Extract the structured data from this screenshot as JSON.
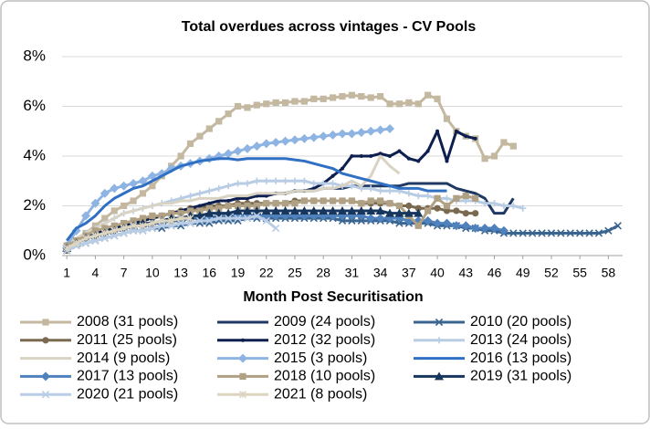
{
  "chart_data": {
    "type": "line",
    "title": "Total overdues across vintages - CV Pools",
    "x_label": "Month Post Securitisation",
    "x": [
      1,
      2,
      3,
      4,
      5,
      6,
      7,
      8,
      9,
      10,
      11,
      12,
      13,
      14,
      15,
      16,
      17,
      18,
      19,
      20,
      21,
      22,
      23,
      24,
      25,
      26,
      27,
      28,
      29,
      30,
      31,
      32,
      33,
      34,
      35,
      36,
      37,
      38,
      39,
      40,
      41,
      42,
      43,
      44,
      45,
      46,
      47,
      48,
      49,
      50,
      51,
      52,
      53,
      54,
      55,
      56,
      57,
      58,
      59
    ],
    "xlim": [
      0.5,
      59.5
    ],
    "xticks": [
      1,
      4,
      7,
      10,
      13,
      16,
      19,
      22,
      25,
      28,
      31,
      34,
      37,
      40,
      43,
      46,
      49,
      52,
      55,
      58
    ],
    "ylim": [
      0,
      8
    ],
    "yticks": [
      {
        "value": 0,
        "label": "0%"
      },
      {
        "value": 2,
        "label": "2%"
      },
      {
        "value": 4,
        "label": "4%"
      },
      {
        "value": 6,
        "label": "6%"
      },
      {
        "value": 8,
        "label": "8%"
      }
    ],
    "grid": true,
    "legend": "bottom",
    "series": [
      {
        "name": "2008 (31 pools)",
        "color": "#c4b9a0",
        "marker": "square",
        "values": [
          0.3,
          0.6,
          0.9,
          1.2,
          1.5,
          1.8,
          2.0,
          2.2,
          2.5,
          2.8,
          3.2,
          3.6,
          4.0,
          4.5,
          4.8,
          5.1,
          5.4,
          5.7,
          6.0,
          5.95,
          6.05,
          6.1,
          6.15,
          6.15,
          6.2,
          6.2,
          6.3,
          6.3,
          6.35,
          6.4,
          6.45,
          6.4,
          6.35,
          6.4,
          6.1,
          6.1,
          6.15,
          6.1,
          6.45,
          6.3,
          5.5,
          5.0,
          4.8,
          4.7,
          3.9,
          4.0,
          4.55,
          4.4,
          null,
          null,
          null,
          null,
          null,
          null,
          null,
          null,
          null,
          null,
          null
        ]
      },
      {
        "name": "2009 (24 pools)",
        "color": "#1f3864",
        "marker": "none",
        "values": [
          0.3,
          0.5,
          0.7,
          0.9,
          1.0,
          1.1,
          1.2,
          1.3,
          1.4,
          1.5,
          1.6,
          1.7,
          1.8,
          1.9,
          2.0,
          2.1,
          2.2,
          2.2,
          2.3,
          2.3,
          2.4,
          2.4,
          2.5,
          2.5,
          2.6,
          2.6,
          2.6,
          2.7,
          2.7,
          2.7,
          2.8,
          2.8,
          2.8,
          2.8,
          2.8,
          2.8,
          2.9,
          2.9,
          2.9,
          2.9,
          2.9,
          2.7,
          2.6,
          2.5,
          2.3,
          1.7,
          1.7,
          2.3,
          null,
          null,
          null,
          null,
          null,
          null,
          null,
          null,
          null,
          null,
          null
        ]
      },
      {
        "name": "2010 (20 pools)",
        "color": "#3a6590",
        "marker": "x",
        "values": [
          0.2,
          0.4,
          0.5,
          0.6,
          0.7,
          0.8,
          0.9,
          1.0,
          1.0,
          1.1,
          1.1,
          1.2,
          1.2,
          1.3,
          1.3,
          1.3,
          1.4,
          1.4,
          1.4,
          1.5,
          1.5,
          1.5,
          1.5,
          1.5,
          1.5,
          1.5,
          1.5,
          1.5,
          1.5,
          1.4,
          1.4,
          1.4,
          1.4,
          1.4,
          1.4,
          1.3,
          1.3,
          1.3,
          1.3,
          1.2,
          1.2,
          1.2,
          1.1,
          1.1,
          1.0,
          1.0,
          0.9,
          0.9,
          0.9,
          0.9,
          0.9,
          0.9,
          0.9,
          0.9,
          0.9,
          0.9,
          0.9,
          1.0,
          1.2
        ]
      },
      {
        "name": "2011 (25 pools)",
        "color": "#7a6a50",
        "marker": "circle",
        "values": [
          0.2,
          0.5,
          0.7,
          0.9,
          1.0,
          1.1,
          1.2,
          1.3,
          1.4,
          1.5,
          1.6,
          1.7,
          1.8,
          1.9,
          1.9,
          2.0,
          2.0,
          2.0,
          2.1,
          2.1,
          2.1,
          2.1,
          2.1,
          2.1,
          2.2,
          2.2,
          2.2,
          2.2,
          2.2,
          2.2,
          2.2,
          2.1,
          2.1,
          2.1,
          2.1,
          2.0,
          2.0,
          1.9,
          1.9,
          1.9,
          1.8,
          1.8,
          1.7,
          1.7,
          null,
          null,
          null,
          null,
          null,
          null,
          null,
          null,
          null,
          null,
          null,
          null,
          null,
          null,
          null
        ]
      },
      {
        "name": "2012 (32 pools)",
        "color": "#0d1f4f",
        "marker": "dot",
        "values": [
          0.3,
          0.5,
          0.7,
          0.9,
          1.0,
          1.1,
          1.2,
          1.3,
          1.4,
          1.5,
          1.6,
          1.7,
          1.8,
          1.9,
          2.0,
          2.1,
          2.2,
          2.2,
          2.3,
          2.3,
          2.4,
          2.4,
          2.5,
          2.5,
          2.6,
          2.6,
          2.7,
          2.9,
          3.2,
          3.5,
          4.0,
          4.0,
          4.0,
          4.1,
          4.0,
          4.2,
          3.9,
          3.8,
          4.2,
          5.0,
          3.8,
          5.0,
          4.8,
          4.7,
          null,
          null,
          null,
          null,
          null,
          null,
          null,
          null,
          null,
          null,
          null,
          null,
          null,
          null,
          null
        ]
      },
      {
        "name": "2013 (24 pools)",
        "color": "#b8cce4",
        "marker": "plus",
        "values": [
          0.3,
          0.6,
          0.9,
          1.1,
          1.3,
          1.5,
          1.7,
          1.8,
          1.9,
          2.0,
          2.1,
          2.2,
          2.3,
          2.4,
          2.5,
          2.6,
          2.7,
          2.8,
          2.9,
          2.9,
          3.0,
          3.0,
          3.0,
          3.0,
          3.0,
          3.0,
          2.9,
          2.9,
          2.9,
          2.8,
          2.8,
          2.7,
          2.7,
          2.6,
          2.6,
          2.6,
          2.5,
          2.4,
          2.4,
          2.3,
          2.3,
          2.2,
          2.2,
          2.2,
          2.1,
          2.1,
          2.0,
          2.0,
          1.9,
          null,
          null,
          null,
          null,
          null,
          null,
          null,
          null,
          null,
          null
        ]
      },
      {
        "name": "2014 (9 pools)",
        "color": "#d9d3c3",
        "marker": "none",
        "values": [
          0.4,
          0.7,
          0.9,
          1.1,
          1.3,
          1.5,
          1.7,
          1.8,
          1.9,
          2.0,
          2.1,
          2.1,
          2.2,
          2.2,
          2.3,
          2.3,
          2.3,
          2.4,
          2.4,
          2.4,
          2.5,
          2.5,
          2.5,
          2.5,
          2.6,
          2.6,
          2.6,
          2.7,
          2.7,
          2.8,
          3.0,
          2.8,
          3.2,
          4.0,
          3.6,
          3.3,
          null,
          null,
          null,
          null,
          null,
          null,
          null,
          null,
          null,
          null,
          null,
          null,
          null,
          null,
          null,
          null,
          null,
          null,
          null,
          null,
          null,
          null,
          null
        ]
      },
      {
        "name": "2015 (3 pools)",
        "color": "#8eb4e3",
        "marker": "diamond",
        "values": [
          0.4,
          1.0,
          1.6,
          2.1,
          2.5,
          2.7,
          2.8,
          2.9,
          3.0,
          3.2,
          3.3,
          3.5,
          3.6,
          3.7,
          3.8,
          3.9,
          4.0,
          4.1,
          4.2,
          4.3,
          4.4,
          4.5,
          4.55,
          4.6,
          4.65,
          4.7,
          4.75,
          4.8,
          4.85,
          4.9,
          4.9,
          4.95,
          5.0,
          5.05,
          5.1,
          null,
          null,
          null,
          null,
          null,
          null,
          null,
          null,
          null,
          null,
          null,
          null,
          null,
          null,
          null,
          null,
          null,
          null,
          null,
          null,
          null,
          null,
          null,
          null
        ]
      },
      {
        "name": "2016 (13 pools)",
        "color": "#2f6fc4",
        "marker": "none",
        "values": [
          0.6,
          1.1,
          1.3,
          1.6,
          2.0,
          2.3,
          2.5,
          2.7,
          2.8,
          3.0,
          3.2,
          3.4,
          3.6,
          3.7,
          3.8,
          3.85,
          3.9,
          3.9,
          3.85,
          3.9,
          3.9,
          3.9,
          3.9,
          3.9,
          3.85,
          3.8,
          3.7,
          3.6,
          3.5,
          3.3,
          3.2,
          3.1,
          3.0,
          2.9,
          2.8,
          2.7,
          2.7,
          2.7,
          2.6,
          2.6,
          2.6,
          null,
          null,
          null,
          null,
          null,
          null,
          null,
          null,
          null,
          null,
          null,
          null,
          null,
          null,
          null,
          null,
          null,
          null
        ]
      },
      {
        "name": "2017 (13 pools)",
        "color": "#4f81bd",
        "marker": "diamond",
        "values": [
          0.3,
          0.5,
          0.7,
          0.8,
          0.9,
          1.0,
          1.1,
          1.2,
          1.2,
          1.3,
          1.3,
          1.4,
          1.4,
          1.5,
          1.5,
          1.5,
          1.6,
          1.6,
          1.6,
          1.6,
          1.6,
          1.6,
          1.6,
          1.6,
          1.6,
          1.6,
          1.6,
          1.6,
          1.6,
          1.6,
          1.6,
          1.6,
          1.5,
          1.5,
          1.5,
          1.5,
          1.4,
          1.4,
          1.4,
          1.3,
          1.3,
          1.2,
          1.2,
          1.1,
          1.1,
          1.1,
          1.0,
          null,
          null,
          null,
          null,
          null,
          null,
          null,
          null,
          null,
          null,
          null,
          null
        ]
      },
      {
        "name": "2018 (10 pools)",
        "color": "#b0a084",
        "marker": "square",
        "values": [
          0.4,
          0.6,
          0.8,
          1.0,
          1.1,
          1.2,
          1.3,
          1.4,
          1.5,
          1.6,
          1.6,
          1.7,
          1.7,
          1.8,
          1.8,
          1.9,
          1.9,
          2.0,
          2.0,
          2.0,
          2.0,
          2.1,
          2.1,
          2.1,
          2.1,
          2.2,
          2.2,
          2.2,
          2.2,
          2.2,
          2.2,
          2.1,
          2.2,
          2.2,
          2.1,
          2.0,
          1.6,
          1.2,
          1.8,
          2.3,
          2.0,
          2.3,
          2.4,
          2.3,
          null,
          null,
          null,
          null,
          null,
          null,
          null,
          null,
          null,
          null,
          null,
          null,
          null,
          null,
          null
        ]
      },
      {
        "name": "2019 (31 pools)",
        "color": "#17365d",
        "marker": "triangle",
        "values": [
          0.3,
          0.5,
          0.7,
          0.8,
          0.9,
          1.0,
          1.1,
          1.2,
          1.3,
          1.3,
          1.4,
          1.5,
          1.5,
          1.6,
          1.6,
          1.7,
          1.7,
          1.7,
          1.8,
          1.8,
          1.8,
          1.8,
          1.8,
          1.8,
          1.8,
          1.8,
          1.8,
          1.8,
          1.8,
          1.8,
          1.8,
          1.8,
          1.8,
          1.8,
          1.7,
          1.7,
          1.7,
          1.7,
          null,
          null,
          null,
          null,
          null,
          null,
          null,
          null,
          null,
          null,
          null,
          null,
          null,
          null,
          null,
          null,
          null,
          null,
          null,
          null,
          null
        ]
      },
      {
        "name": "2020 (21 pools)",
        "color": "#b9cde6",
        "marker": "x",
        "values": [
          0.2,
          0.4,
          0.5,
          0.6,
          0.7,
          0.8,
          0.9,
          1.0,
          1.0,
          1.1,
          1.2,
          1.2,
          1.3,
          1.3,
          1.4,
          1.4,
          1.5,
          1.5,
          1.5,
          1.5,
          1.6,
          1.4,
          1.1,
          null,
          null,
          null,
          null,
          null,
          null,
          null,
          null,
          null,
          null,
          null,
          null,
          null,
          null,
          null,
          null,
          null,
          null,
          null,
          null,
          null,
          null,
          null,
          null,
          null,
          null,
          null,
          null,
          null,
          null,
          null,
          null,
          null,
          null,
          null,
          null
        ]
      },
      {
        "name": "2021 (8 pools)",
        "color": "#ddd5c0",
        "marker": "asterisk",
        "values": [
          0.3,
          0.5,
          0.7,
          0.8,
          0.9,
          1.0,
          1.1,
          1.2,
          1.2,
          1.3,
          1.4,
          1.4,
          1.5,
          1.5,
          null,
          null,
          null,
          null,
          null,
          null,
          null,
          null,
          null,
          null,
          null,
          null,
          null,
          null,
          null,
          null,
          null,
          null,
          null,
          null,
          null,
          null,
          null,
          null,
          null,
          null,
          null,
          null,
          null,
          null,
          null,
          null,
          null,
          null,
          null,
          null,
          null,
          null,
          null,
          null,
          null,
          null,
          null,
          null,
          null
        ]
      }
    ]
  }
}
